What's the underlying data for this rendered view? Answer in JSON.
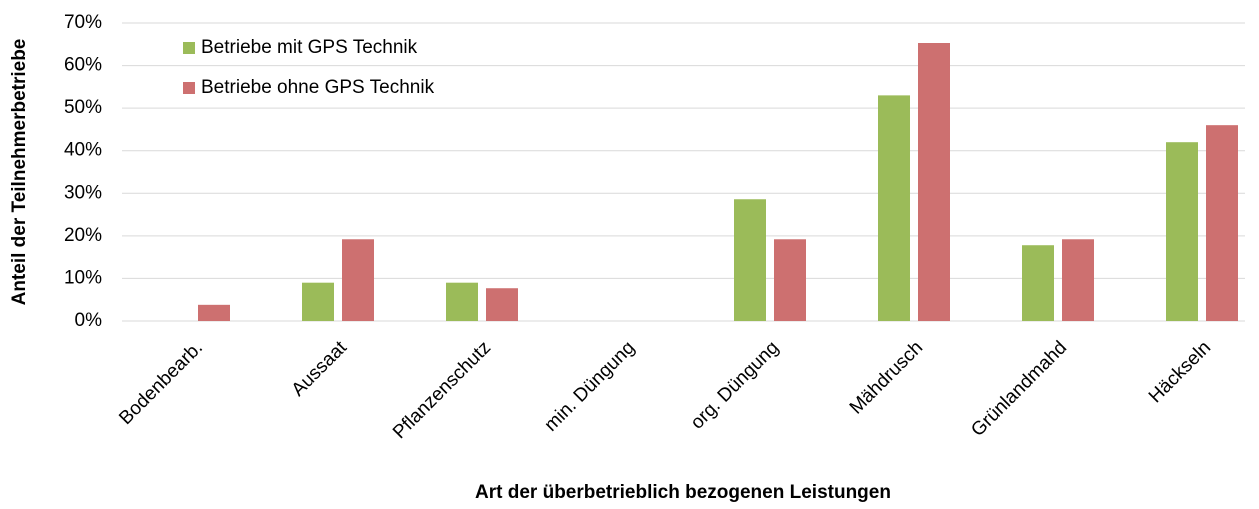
{
  "chart_data": {
    "type": "bar",
    "xlabel": "Art der überbetrieblich bezogenen Leistungen",
    "ylabel": "Anteil der Teilnehmerbetriebe",
    "categories": [
      "Bodenbearb.",
      "Aussaat",
      "Pflanzenschutz",
      "min. Düngung",
      "org. Düngung",
      "Mähdrusch",
      "Grünlandmahd",
      "Häckseln"
    ],
    "series": [
      {
        "name": "Betriebe mit GPS Technik",
        "color": "#9bbb59",
        "values": [
          0,
          9,
          9,
          0,
          28.6,
          53,
          17.8,
          42
        ]
      },
      {
        "name": "Betriebe ohne GPS Technik",
        "color": "#cd7070",
        "values": [
          3.8,
          19.2,
          7.7,
          0,
          19.2,
          65.3,
          19.2,
          46
        ]
      }
    ],
    "ylim": [
      0,
      70
    ],
    "yticks": [
      {
        "value": 0,
        "label": "0%"
      },
      {
        "value": 10,
        "label": "10%"
      },
      {
        "value": 20,
        "label": "20%"
      },
      {
        "value": 30,
        "label": "30%"
      },
      {
        "value": 40,
        "label": "40%"
      },
      {
        "value": 50,
        "label": "50%"
      },
      {
        "value": 60,
        "label": "60%"
      },
      {
        "value": 70,
        "label": "70%"
      }
    ],
    "grid": true,
    "legend": "upper left"
  }
}
